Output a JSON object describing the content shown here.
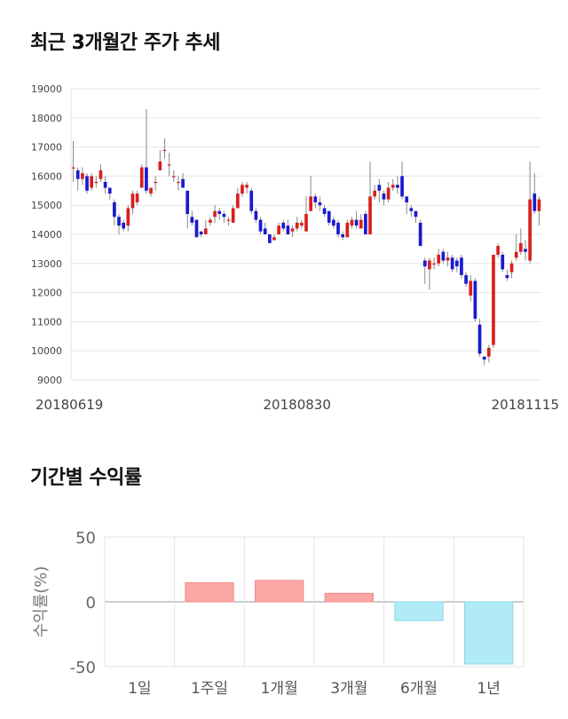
{
  "sections": {
    "price_title": "최근 3개월간 주가 추세",
    "returns_title": "기간별 수익률"
  },
  "colors": {
    "up": "#d91f1f",
    "down": "#1a1ad1",
    "positive_bar": "#fca5a5",
    "negative_bar": "#b1ebf5",
    "grid": "#e5e5e5",
    "zero_line": "#999999"
  },
  "chart_data": [
    {
      "type": "candlestick",
      "title": "최근 3개월간 주가 추세",
      "xlabel": "",
      "ylabel": "",
      "ylim": [
        9000,
        19000
      ],
      "yticks": [
        9000,
        10000,
        11000,
        12000,
        13000,
        14000,
        15000,
        16000,
        17000,
        18000,
        19000
      ],
      "xtick_labels": [
        "20180619",
        "20180830",
        "20181115"
      ],
      "xtick_indices": [
        0,
        49,
        101
      ],
      "grid": true,
      "candles": [
        [
          16300,
          16300,
          17200,
          15800
        ],
        [
          16200,
          15900,
          16300,
          15500
        ],
        [
          15900,
          16100,
          16300,
          15700
        ],
        [
          16000,
          15500,
          16100,
          15400
        ],
        [
          15600,
          16000,
          16100,
          15500
        ],
        [
          15800,
          15800,
          16000,
          15600
        ],
        [
          15900,
          16200,
          16400,
          15800
        ],
        [
          15800,
          15600,
          16000,
          15400
        ],
        [
          15600,
          15400,
          15600,
          15200
        ],
        [
          15100,
          14600,
          15200,
          14300
        ],
        [
          14600,
          14300,
          14700,
          14000
        ],
        [
          14400,
          14200,
          14500,
          14100
        ],
        [
          14300,
          14900,
          15000,
          14100
        ],
        [
          14900,
          15400,
          15500,
          14700
        ],
        [
          15100,
          15400,
          15500,
          15000
        ],
        [
          15600,
          16300,
          16400,
          15800
        ],
        [
          16300,
          15500,
          18300,
          15400
        ],
        [
          15400,
          15600,
          15600,
          15300
        ],
        [
          15800,
          15800,
          16000,
          15500
        ],
        [
          16200,
          16500,
          16900,
          16200
        ],
        [
          16900,
          16900,
          17300,
          16600
        ],
        [
          16400,
          16400,
          16800,
          16000
        ],
        [
          16000,
          16000,
          16200,
          15800
        ],
        [
          15800,
          15800,
          16000,
          15500
        ],
        [
          15900,
          15600,
          16100,
          15600
        ],
        [
          15500,
          14700,
          15500,
          14200
        ],
        [
          14600,
          14400,
          14800,
          14300
        ],
        [
          14500,
          13900,
          14500,
          13900
        ],
        [
          14100,
          14000,
          14100,
          13900
        ],
        [
          14000,
          14200,
          14500,
          14100
        ],
        [
          14400,
          14500,
          14600,
          14300
        ],
        [
          14600,
          14800,
          15000,
          14400
        ],
        [
          14800,
          14700,
          14900,
          14500
        ],
        [
          14700,
          14600,
          14800,
          14400
        ],
        [
          14500,
          14500,
          14600,
          14300
        ],
        [
          14400,
          14900,
          15000,
          14400
        ],
        [
          14900,
          15400,
          15600,
          14900
        ],
        [
          15400,
          15700,
          15800,
          15300
        ],
        [
          15600,
          15700,
          15800,
          15400
        ],
        [
          15500,
          14800,
          15600,
          14700
        ],
        [
          14800,
          14500,
          14900,
          14400
        ],
        [
          14500,
          14100,
          14600,
          14000
        ],
        [
          14200,
          14000,
          14400,
          14000
        ],
        [
          14000,
          13700,
          14000,
          13700
        ],
        [
          13800,
          13900,
          14000,
          13800
        ],
        [
          14000,
          14300,
          14400,
          14000
        ],
        [
          14400,
          14200,
          14500,
          14100
        ],
        [
          14300,
          14000,
          14500,
          14000
        ],
        [
          14100,
          14200,
          14300,
          13900
        ],
        [
          14200,
          14400,
          14600,
          14100
        ],
        [
          14300,
          14400,
          14500,
          14200
        ],
        [
          14100,
          14700,
          15300,
          14100
        ],
        [
          14800,
          15300,
          16000,
          14800
        ],
        [
          15300,
          15100,
          15400,
          14900
        ],
        [
          15100,
          15000,
          15300,
          14800
        ],
        [
          14900,
          14700,
          15000,
          14600
        ],
        [
          14800,
          14400,
          14800,
          14300
        ],
        [
          14500,
          14300,
          14600,
          14200
        ],
        [
          14400,
          14000,
          14500,
          13900
        ],
        [
          14000,
          13900,
          14100,
          13800
        ],
        [
          13900,
          14400,
          14500,
          13900
        ],
        [
          14300,
          14500,
          14600,
          14200
        ],
        [
          14500,
          14300,
          14800,
          14200
        ],
        [
          14200,
          14500,
          14700,
          14200
        ],
        [
          14700,
          14000,
          14800,
          14000
        ],
        [
          14000,
          15300,
          16500,
          14000
        ],
        [
          15300,
          15500,
          15700,
          15200
        ],
        [
          15700,
          15500,
          15900,
          15100
        ],
        [
          15400,
          15200,
          15500,
          15000
        ],
        [
          15200,
          15600,
          15800,
          15100
        ],
        [
          15600,
          15700,
          15900,
          15500
        ],
        [
          15700,
          15600,
          16000,
          15400
        ],
        [
          16000,
          15300,
          16500,
          15200
        ],
        [
          15300,
          15100,
          15300,
          14700
        ],
        [
          14900,
          14800,
          15000,
          14600
        ],
        [
          14800,
          14600,
          14800,
          14400
        ],
        [
          14400,
          13600,
          14500,
          13600
        ],
        [
          13100,
          12900,
          13200,
          12300
        ],
        [
          12800,
          13100,
          13200,
          12100
        ],
        [
          13000,
          13000,
          13200,
          12800
        ],
        [
          13000,
          13300,
          13500,
          12900
        ],
        [
          13400,
          13100,
          13500,
          13000
        ],
        [
          13100,
          13200,
          13400,
          12900
        ],
        [
          13200,
          12800,
          13300,
          12700
        ],
        [
          13100,
          12900,
          13200,
          12700
        ],
        [
          13200,
          12600,
          13300,
          12500
        ],
        [
          12600,
          12300,
          12700,
          12200
        ],
        [
          11900,
          12400,
          12600,
          11700
        ],
        [
          12400,
          11100,
          12500,
          11000
        ],
        [
          10900,
          9900,
          11100,
          9800
        ],
        [
          9800,
          9700,
          9800,
          9500
        ],
        [
          9800,
          10100,
          10200,
          9600
        ],
        [
          10200,
          13300,
          13300,
          10100
        ],
        [
          13300,
          13600,
          13700,
          13200
        ],
        [
          13300,
          12800,
          13400,
          12700
        ],
        [
          12600,
          12500,
          12800,
          12400
        ],
        [
          12700,
          13000,
          13100,
          12500
        ],
        [
          13200,
          13400,
          14000,
          13100
        ],
        [
          13400,
          13700,
          14200,
          13300
        ],
        [
          13500,
          13400,
          13800,
          13100
        ],
        [
          13100,
          15200,
          16500,
          13000
        ],
        [
          15400,
          14800,
          16100,
          14700
        ],
        [
          14800,
          15200,
          15300,
          14300
        ]
      ]
    },
    {
      "type": "bar",
      "title": "기간별 수익률",
      "xlabel": "",
      "ylabel": "수익률(%)",
      "ylim": [
        -50,
        50
      ],
      "yticks": [
        -50,
        0,
        50
      ],
      "grid": true,
      "categories": [
        "1일",
        "1주일",
        "1개월",
        "3개월",
        "6개월",
        "1년"
      ],
      "values": [
        0,
        14.7,
        16.5,
        6.6,
        -14.5,
        -48.0
      ]
    }
  ]
}
